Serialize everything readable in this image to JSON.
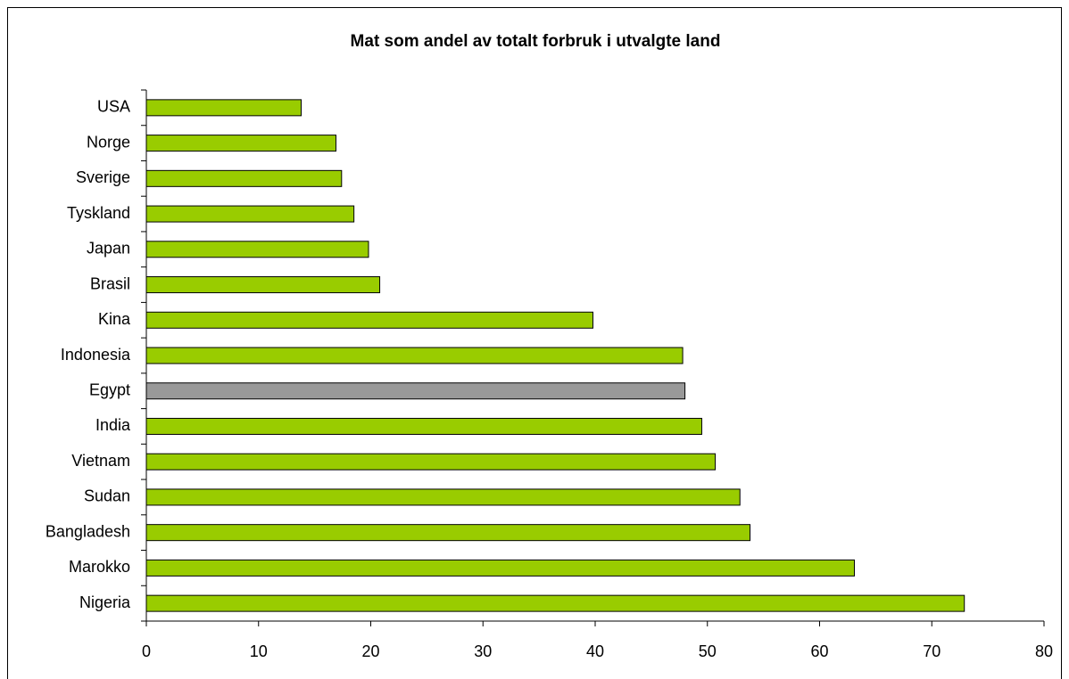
{
  "chart_data": {
    "type": "barh",
    "title": "Mat som andel av totalt forbruk i utvalgte land",
    "categories": [
      "USA",
      "Norge",
      "Sverige",
      "Tyskland",
      "Japan",
      "Brasil",
      "Kina",
      "Indonesia",
      "Egypt",
      "India",
      "Vietnam",
      "Sudan",
      "Bangladesh",
      "Marokko",
      "Nigeria"
    ],
    "values": [
      13.8,
      16.9,
      17.4,
      18.5,
      19.8,
      20.8,
      39.8,
      47.8,
      48.0,
      49.5,
      50.7,
      52.9,
      53.8,
      63.1,
      72.9
    ],
    "colors": [
      "#99cc00",
      "#99cc00",
      "#99cc00",
      "#99cc00",
      "#99cc00",
      "#99cc00",
      "#99cc00",
      "#99cc00",
      "#999999",
      "#99cc00",
      "#99cc00",
      "#99cc00",
      "#99cc00",
      "#99cc00",
      "#99cc00"
    ],
    "xlim": [
      0,
      80
    ],
    "xticks": [
      0,
      10,
      20,
      30,
      40,
      50,
      60,
      70,
      80
    ],
    "grid": false
  }
}
